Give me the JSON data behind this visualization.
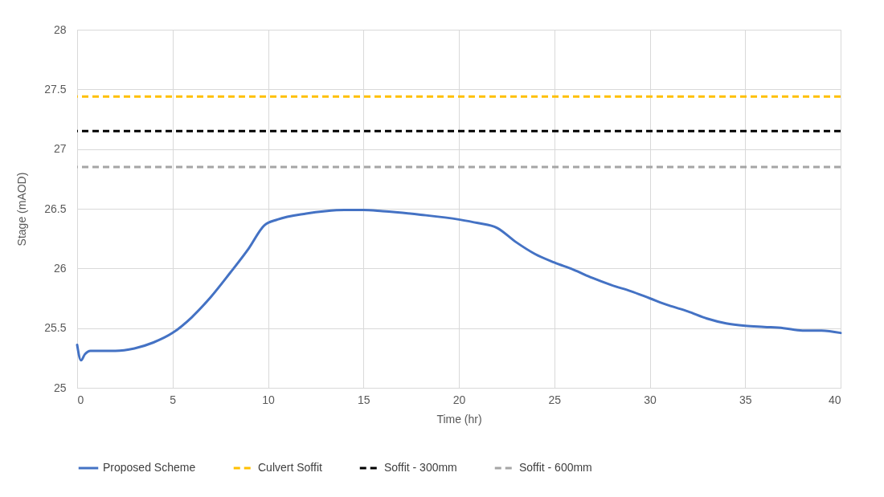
{
  "chart_data": {
    "type": "line",
    "xlabel": "Time (hr)",
    "ylabel": "Stage (mAOD)",
    "xlim": [
      0,
      40
    ],
    "xticks": [
      0,
      5,
      10,
      15,
      20,
      25,
      30,
      35,
      40
    ],
    "ylim": [
      25,
      28
    ],
    "yticks": [
      25,
      25.5,
      26,
      26.5,
      27,
      27.5,
      28
    ],
    "grid": true,
    "legend": "bottom",
    "marker": "none",
    "series": [
      {
        "name": "Proposed Scheme",
        "color": "#4472c4",
        "line_style": "solid",
        "x": [
          0,
          0.2,
          0.4,
          0.7,
          1,
          2,
          3,
          4,
          5,
          6,
          7,
          8,
          9,
          9.8,
          10.5,
          12,
          13,
          14,
          15,
          16,
          18,
          20,
          21,
          22,
          23,
          24,
          25,
          26,
          27,
          28,
          29,
          30,
          31,
          32,
          33,
          34,
          35,
          36,
          37,
          38,
          39,
          40
        ],
        "values": [
          25.36,
          25.23,
          25.28,
          25.31,
          25.31,
          25.31,
          25.33,
          25.38,
          25.46,
          25.59,
          25.76,
          25.96,
          26.17,
          26.36,
          26.41,
          26.46,
          26.48,
          26.49,
          26.49,
          26.48,
          26.45,
          26.41,
          26.38,
          26.34,
          26.22,
          26.12,
          26.05,
          25.99,
          25.92,
          25.86,
          25.81,
          25.75,
          25.69,
          25.64,
          25.58,
          25.54,
          25.52,
          25.51,
          25.5,
          25.48,
          25.48,
          25.46
        ]
      }
    ],
    "ref_lines": [
      {
        "axis": "y",
        "value": 27.44,
        "label": "Culvert Soffit",
        "color": "#ffc000",
        "line_style": "dashed"
      },
      {
        "axis": "y",
        "value": 27.15,
        "label": "Soffit - 300mm",
        "color": "#000000",
        "line_style": "dashed"
      },
      {
        "axis": "y",
        "value": 26.85,
        "label": "Soffit - 600mm",
        "color": "#a5a5a5",
        "line_style": "dashed"
      }
    ]
  }
}
